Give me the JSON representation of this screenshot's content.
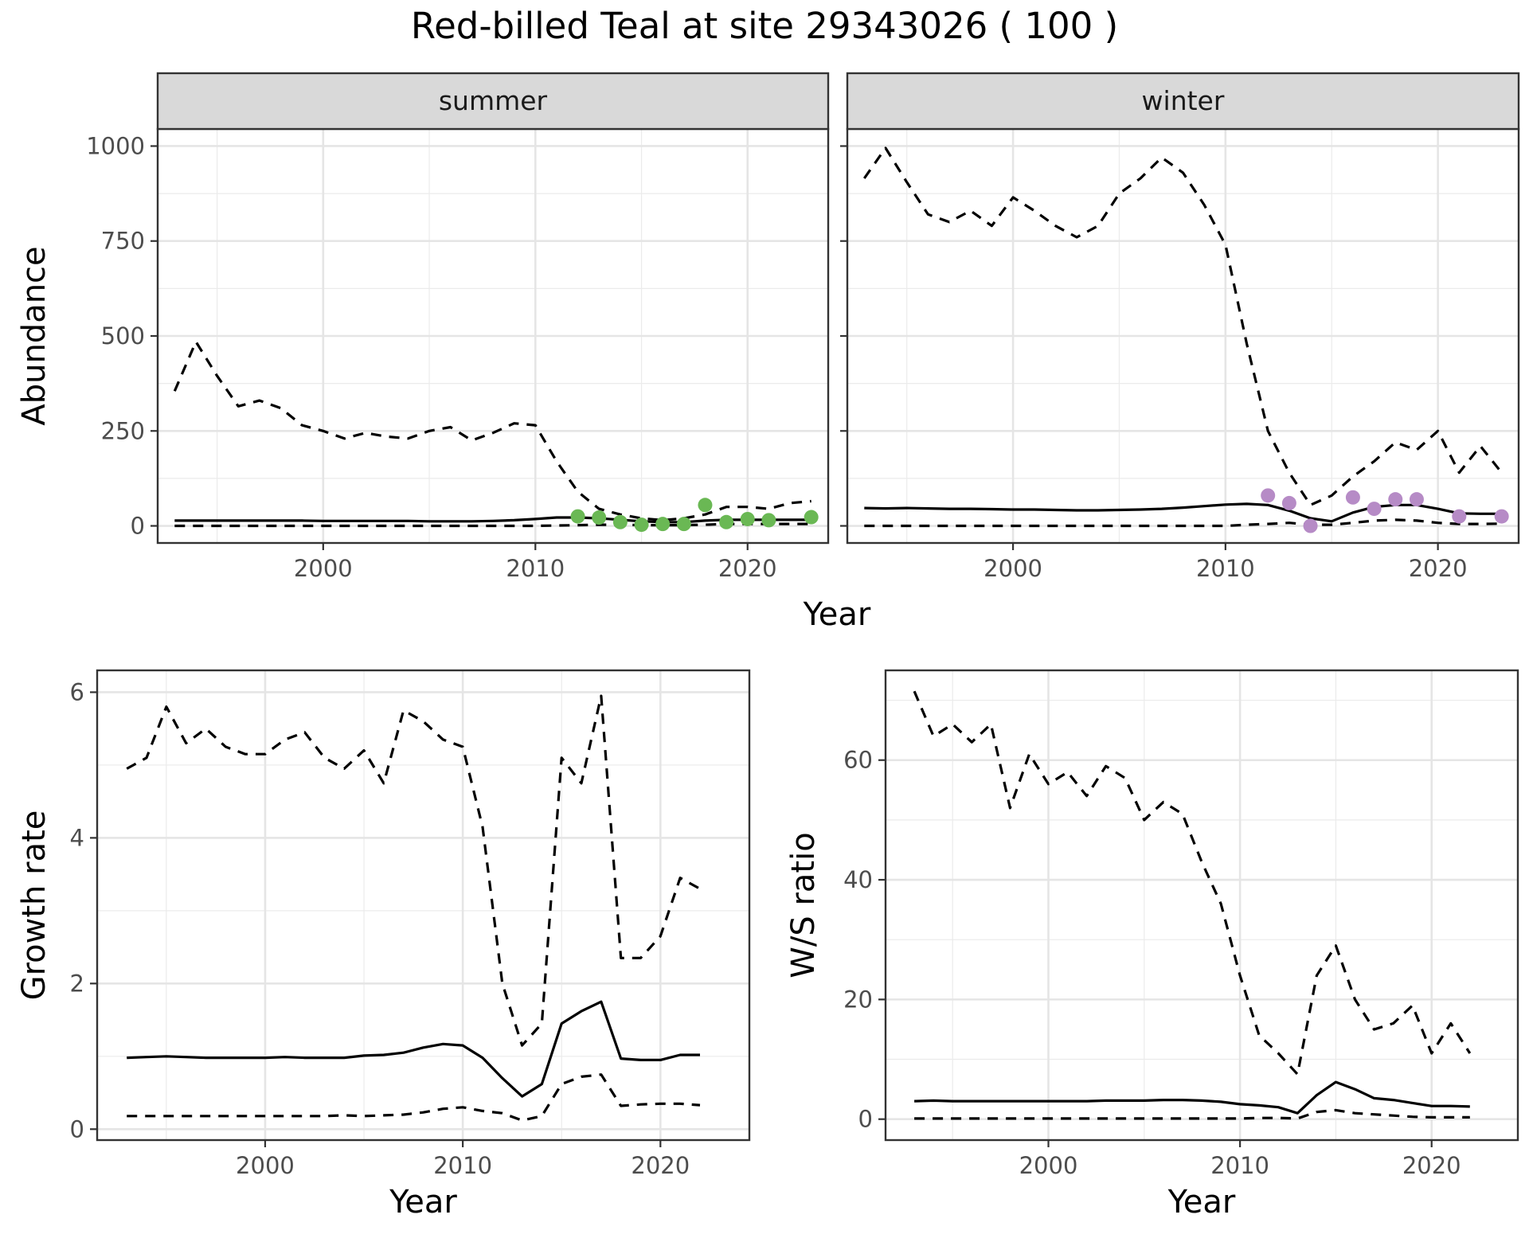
{
  "chart_data": [
    {
      "type": "line",
      "title": "Red-billed Teal at site 29343026 ( 100 )",
      "facet": "summer",
      "xlabel": "Year",
      "ylabel": "Abundance",
      "xlim": [
        1992.2,
        2023.8
      ],
      "ylim": [
        -45,
        1045
      ],
      "xticks": [
        2000,
        2010,
        2020
      ],
      "yticks": [
        0,
        250,
        500,
        750,
        1000
      ],
      "ytick_labels": [
        "0",
        "250",
        "500",
        "750",
        "1000"
      ],
      "grid": true,
      "x": [
        1993,
        1994,
        1995,
        1996,
        1997,
        1998,
        1999,
        2000,
        2001,
        2002,
        2003,
        2004,
        2005,
        2006,
        2007,
        2008,
        2009,
        2010,
        2011,
        2012,
        2013,
        2014,
        2015,
        2016,
        2017,
        2018,
        2019,
        2020,
        2021,
        2022,
        2023
      ],
      "series": [
        {
          "style": "dashed",
          "values": [
            355,
            485,
            395,
            315,
            330,
            310,
            265,
            250,
            230,
            245,
            235,
            230,
            250,
            260,
            225,
            245,
            270,
            265,
            170,
            90,
            45,
            30,
            20,
            15,
            20,
            30,
            50,
            50,
            45,
            60,
            65
          ]
        },
        {
          "style": "solid",
          "values": [
            14,
            14,
            14,
            14,
            14,
            14,
            14,
            13,
            13,
            13,
            13,
            13,
            12,
            12,
            12,
            13,
            15,
            18,
            22,
            22,
            20,
            16,
            12,
            10,
            10,
            14,
            16,
            16,
            16,
            16,
            16
          ]
        },
        {
          "style": "dashed",
          "values": [
            0,
            0,
            0,
            0,
            0,
            0,
            0,
            0,
            0,
            0,
            0,
            0,
            0,
            0,
            0,
            0,
            0,
            0,
            1,
            2,
            3,
            3,
            2,
            2,
            2,
            3,
            5,
            5,
            5,
            5,
            5
          ]
        }
      ],
      "points": {
        "color": "#6ab854",
        "x": [
          2012,
          2013,
          2014,
          2015,
          2016,
          2017,
          2018,
          2019,
          2020,
          2021,
          2023
        ],
        "y": [
          25,
          22,
          10,
          3,
          5,
          5,
          55,
          10,
          18,
          15,
          23
        ]
      }
    },
    {
      "type": "line",
      "facet": "winter",
      "xlabel": "Year",
      "xlim": [
        1992.2,
        2023.8
      ],
      "ylim": [
        -45,
        1045
      ],
      "xticks": [
        2000,
        2010,
        2020
      ],
      "grid": true,
      "x": [
        1993,
        1994,
        1995,
        1996,
        1997,
        1998,
        1999,
        2000,
        2001,
        2002,
        2003,
        2004,
        2005,
        2006,
        2007,
        2008,
        2009,
        2010,
        2011,
        2012,
        2013,
        2014,
        2015,
        2016,
        2017,
        2018,
        2019,
        2020,
        2021,
        2022,
        2023
      ],
      "series": [
        {
          "style": "dashed",
          "values": [
            915,
            995,
            905,
            820,
            800,
            830,
            790,
            865,
            830,
            790,
            760,
            790,
            875,
            915,
            970,
            930,
            845,
            740,
            480,
            250,
            140,
            55,
            80,
            130,
            170,
            220,
            200,
            250,
            140,
            210,
            140
          ]
        },
        {
          "style": "solid",
          "values": [
            47,
            46,
            47,
            46,
            45,
            45,
            44,
            43,
            43,
            42,
            41,
            41,
            42,
            43,
            45,
            48,
            52,
            56,
            58,
            55,
            40,
            20,
            12,
            35,
            50,
            55,
            55,
            45,
            33,
            32,
            32
          ]
        },
        {
          "style": "dashed",
          "values": [
            0,
            0,
            0,
            0,
            0,
            0,
            0,
            0,
            0,
            0,
            0,
            0,
            0,
            0,
            0,
            0,
            0,
            0,
            3,
            5,
            8,
            3,
            3,
            8,
            14,
            16,
            14,
            8,
            5,
            5,
            6
          ]
        }
      ],
      "points": {
        "color": "#b68bc6",
        "x": [
          2012,
          2013,
          2014,
          2016,
          2017,
          2018,
          2019,
          2021,
          2023
        ],
        "y": [
          80,
          60,
          0,
          75,
          45,
          70,
          70,
          25,
          25
        ]
      }
    },
    {
      "type": "line",
      "xlabel": "Year",
      "ylabel": "Growth rate",
      "xlim": [
        1991.5,
        2024.5
      ],
      "ylim": [
        -0.15,
        6.3
      ],
      "xticks": [
        2000,
        2010,
        2020
      ],
      "yticks": [
        0,
        2,
        4,
        6
      ],
      "ytick_labels": [
        "0",
        "2",
        "4",
        "6"
      ],
      "grid": true,
      "x": [
        1993,
        1994,
        1995,
        1996,
        1997,
        1998,
        1999,
        2000,
        2001,
        2002,
        2003,
        2004,
        2005,
        2006,
        2007,
        2008,
        2009,
        2010,
        2011,
        2012,
        2013,
        2014,
        2015,
        2016,
        2017,
        2018,
        2019,
        2020,
        2021,
        2022
      ],
      "series": [
        {
          "style": "dashed",
          "values": [
            4.95,
            5.1,
            5.8,
            5.3,
            5.5,
            5.25,
            5.15,
            5.15,
            5.35,
            5.45,
            5.1,
            4.95,
            5.2,
            4.75,
            5.75,
            5.6,
            5.35,
            5.25,
            4.15,
            2.0,
            1.15,
            1.45,
            5.1,
            4.75,
            5.95,
            2.35,
            2.35,
            2.65,
            3.45,
            3.3
          ]
        },
        {
          "style": "solid",
          "values": [
            0.98,
            0.99,
            1.0,
            0.99,
            0.98,
            0.98,
            0.98,
            0.98,
            0.99,
            0.98,
            0.98,
            0.98,
            1.01,
            1.02,
            1.05,
            1.12,
            1.17,
            1.15,
            0.98,
            0.7,
            0.45,
            0.62,
            1.45,
            1.62,
            1.75,
            0.97,
            0.95,
            0.95,
            1.02,
            1.02
          ]
        },
        {
          "style": "dashed",
          "values": [
            0.18,
            0.18,
            0.18,
            0.18,
            0.18,
            0.18,
            0.18,
            0.18,
            0.18,
            0.18,
            0.18,
            0.19,
            0.18,
            0.19,
            0.2,
            0.23,
            0.28,
            0.3,
            0.25,
            0.22,
            0.12,
            0.18,
            0.62,
            0.72,
            0.75,
            0.32,
            0.34,
            0.35,
            0.35,
            0.33
          ]
        }
      ]
    },
    {
      "type": "line",
      "xlabel": "Year",
      "ylabel": "W/S ratio",
      "xlim": [
        1991.5,
        2024.5
      ],
      "ylim": [
        -3.5,
        75
      ],
      "xticks": [
        2000,
        2010,
        2020
      ],
      "yticks": [
        0,
        20,
        40,
        60
      ],
      "ytick_labels": [
        "0",
        "20",
        "40",
        "60"
      ],
      "grid": true,
      "x": [
        1993,
        1994,
        1995,
        1996,
        1997,
        1998,
        1999,
        2000,
        2001,
        2002,
        2003,
        2004,
        2005,
        2006,
        2007,
        2008,
        2009,
        2010,
        2011,
        2012,
        2013,
        2014,
        2015,
        2016,
        2017,
        2018,
        2019,
        2020,
        2021,
        2022
      ],
      "series": [
        {
          "style": "dashed",
          "values": [
            71.5,
            64,
            66,
            63,
            66,
            52,
            61,
            56,
            58,
            54,
            59,
            57,
            50,
            53,
            51,
            43,
            36,
            24,
            14,
            11,
            7.5,
            24,
            29,
            20,
            15,
            16,
            19,
            11,
            16,
            11
          ]
        },
        {
          "style": "solid",
          "values": [
            3.0,
            3.1,
            3.0,
            3.0,
            3.0,
            3.0,
            3.0,
            3.0,
            3.0,
            3.0,
            3.1,
            3.1,
            3.1,
            3.2,
            3.2,
            3.1,
            2.9,
            2.5,
            2.3,
            2.0,
            1.0,
            4.0,
            6.2,
            5.0,
            3.5,
            3.2,
            2.7,
            2.2,
            2.2,
            2.1
          ]
        },
        {
          "style": "dashed",
          "values": [
            0.1,
            0.1,
            0.1,
            0.1,
            0.1,
            0.1,
            0.1,
            0.1,
            0.1,
            0.1,
            0.1,
            0.1,
            0.1,
            0.1,
            0.1,
            0.1,
            0.1,
            0.1,
            0.2,
            0.2,
            0.1,
            1.2,
            1.5,
            1.0,
            0.8,
            0.6,
            0.4,
            0.3,
            0.3,
            0.3
          ]
        }
      ]
    }
  ]
}
